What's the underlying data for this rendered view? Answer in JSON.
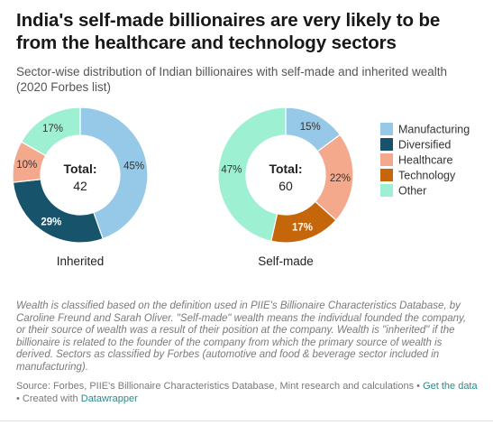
{
  "header": {
    "title": "India's self-made billionaires are very likely to be from the healthcare and technology sectors",
    "subtitle": "Sector-wise distribution of Indian billionaires with self-made and inherited wealth (2020 Forbes list)"
  },
  "colors": {
    "Manufacturing": "#96c8e8",
    "Diversified": "#17536b",
    "Healthcare": "#f4a98d",
    "Technology": "#c5660b",
    "Other": "#9ef0d2"
  },
  "chart_data": [
    {
      "type": "pie",
      "name": "Inherited",
      "total_label": "Total:",
      "total": 42,
      "labels": [
        "Manufacturing",
        "Diversified",
        "Healthcare",
        "Other"
      ],
      "values": [
        45,
        29,
        10,
        17
      ],
      "value_labels": [
        "45%",
        "29%",
        "10%",
        "17%"
      ]
    },
    {
      "type": "pie",
      "name": "Self-made",
      "total_label": "Total:",
      "total": 60,
      "labels": [
        "Manufacturing",
        "Healthcare",
        "Technology",
        "Other"
      ],
      "values": [
        15,
        22,
        17,
        47
      ],
      "value_labels": [
        "15%",
        "22%",
        "17%",
        "47%"
      ]
    }
  ],
  "legend": {
    "items": [
      "Manufacturing",
      "Diversified",
      "Healthcare",
      "Technology",
      "Other"
    ]
  },
  "notes": "Wealth is classified based on the definition used in PIIE's Billionaire Characteristics Database, by Caroline Freund and Sarah Oliver. \"Self-made\" wealth means the individual founded the company, or their source of wealth was a result of their position at the company. Wealth is \"inherited\" if the billionaire is related to the founder of the company from which the primary source of wealth is derived. Sectors as classified by Forbes (automotive and food & beverage sector included in manufacturing).",
  "source": {
    "text": "Source: Forbes, PIIE's Billionaire Characteristics Database, Mint research and calculations",
    "sep": "•",
    "get_data": "Get the data",
    "created_with": "Created with",
    "tool": "Datawrapper"
  }
}
